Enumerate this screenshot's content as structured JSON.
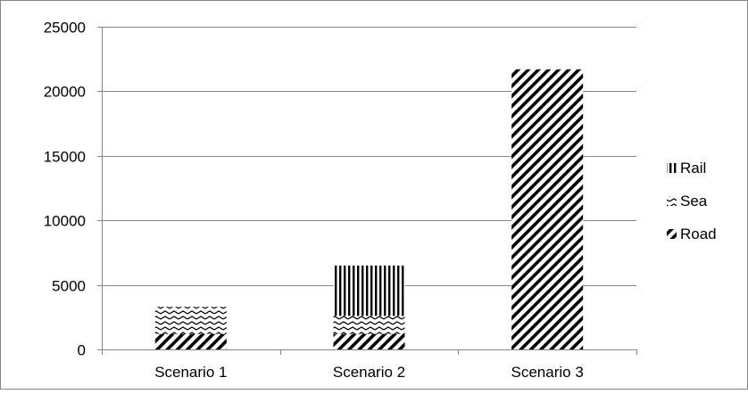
{
  "chart_data": {
    "type": "bar",
    "stacked": true,
    "categories": [
      "Scenario 1",
      "Scenario 2",
      "Scenario 3"
    ],
    "series": [
      {
        "name": "Road",
        "values": [
          1200,
          1200,
          21700
        ],
        "pattern": "diagonal-stripes"
      },
      {
        "name": "Sea",
        "values": [
          2100,
          1400,
          0
        ],
        "pattern": "zigzag"
      },
      {
        "name": "Rail",
        "values": [
          0,
          3900,
          0
        ],
        "pattern": "vertical-stripes"
      }
    ],
    "legend_order": [
      "Rail",
      "Sea",
      "Road"
    ],
    "legend_placement": "right",
    "ylim": [
      0,
      25000
    ],
    "yticks": [
      0,
      5000,
      10000,
      15000,
      20000,
      25000
    ],
    "title": "",
    "xlabel": "",
    "ylabel": "",
    "grid": true,
    "colors": {
      "bar": "#000000",
      "grid": "#868686",
      "axis": "#868686",
      "frame": "#868686"
    }
  }
}
